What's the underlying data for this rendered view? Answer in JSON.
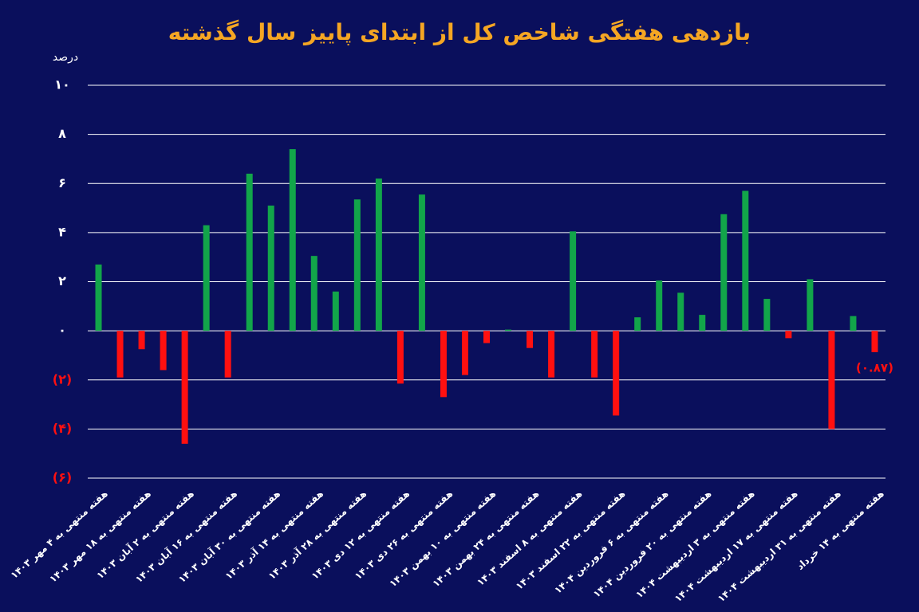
{
  "chart_data": {
    "type": "bar",
    "title": "بازدهی هفتگی شاخص کل از ابتدای پاییز سال گذشته",
    "y_label": "درصد",
    "categories": [
      "هفته منتهی به ۴ مهر ۱۴۰۳",
      null,
      "هفته منتهی به ۱۸ مهر ۱۴۰۳",
      null,
      "هفته منتهی به ۲ آبان ۱۴۰۳",
      null,
      "هفته منتهی به ۱۶ آبان ۱۴۰۳",
      null,
      "هفته منتهی به ۳۰ آبان ۱۴۰۳",
      null,
      "هفته منتهی به ۱۴ آذر ۱۴۰۳",
      null,
      "هفته منتهی به ۲۸ آذر ۱۴۰۳",
      null,
      "هفته منتهی به ۱۲ دی ۱۴۰۳",
      null,
      "هفته منتهی به ۲۶ دی ۱۴۰۳",
      null,
      "هفته منتهی به ۱۰ بهمن ۱۴۰۳",
      null,
      "هفته منتهی به ۲۴ بهمن ۱۴۰۳",
      null,
      "هفته منتهی به ۸ اسفند ۱۴۰۳",
      null,
      "هفته منتهی به ۲۲ اسفند ۱۴۰۳",
      null,
      "هفته منتهی به ۶ فروردین ۱۴۰۴",
      null,
      "هفته منتهی به ۲۰ فروردین ۱۴۰۴",
      null,
      "هفته منتهی به ۳ اردیبهشت ۱۴۰۴",
      null,
      "هفته منتهی به ۱۷ اردیبهشت ۱۴۰۴",
      null,
      "هفته منتهی به ۳۱ اردیبهشت ۱۴۰۴",
      null,
      "هفته منتهی به ۱۴ خرداد"
    ],
    "values": [
      2.7,
      -1.9,
      -0.75,
      -1.6,
      -4.6,
      4.3,
      -1.9,
      6.4,
      5.1,
      7.4,
      3.05,
      1.6,
      5.35,
      6.2,
      -2.15,
      5.55,
      -2.7,
      -1.8,
      -0.5,
      0.05,
      -0.7,
      -1.9,
      4.05,
      -1.9,
      -3.45,
      0.55,
      2.05,
      1.55,
      0.65,
      4.75,
      5.7,
      1.3,
      -0.3,
      2.1,
      -4.0,
      0.6,
      -0.87
    ],
    "value_labels": [
      null,
      null,
      null,
      null,
      null,
      null,
      null,
      null,
      null,
      null,
      null,
      null,
      null,
      null,
      null,
      null,
      null,
      null,
      null,
      null,
      null,
      null,
      null,
      null,
      null,
      null,
      null,
      null,
      null,
      null,
      null,
      null,
      null,
      null,
      null,
      null,
      "(۰.۸۷)"
    ],
    "positive_color": "#12a54a",
    "negative_color": "#ff1010",
    "ylim": [
      -6,
      10
    ],
    "yticks": [
      {
        "value": -6,
        "label": "(۶)"
      },
      {
        "value": -4,
        "label": "(۴)"
      },
      {
        "value": -2,
        "label": "(۲)"
      },
      {
        "value": 0,
        "label": "۰"
      },
      {
        "value": 2,
        "label": "۲"
      },
      {
        "value": 4,
        "label": "۴"
      },
      {
        "value": 6,
        "label": "۶"
      },
      {
        "value": 8,
        "label": "۸"
      },
      {
        "value": 10,
        "label": "۱۰"
      }
    ],
    "grid": true
  }
}
